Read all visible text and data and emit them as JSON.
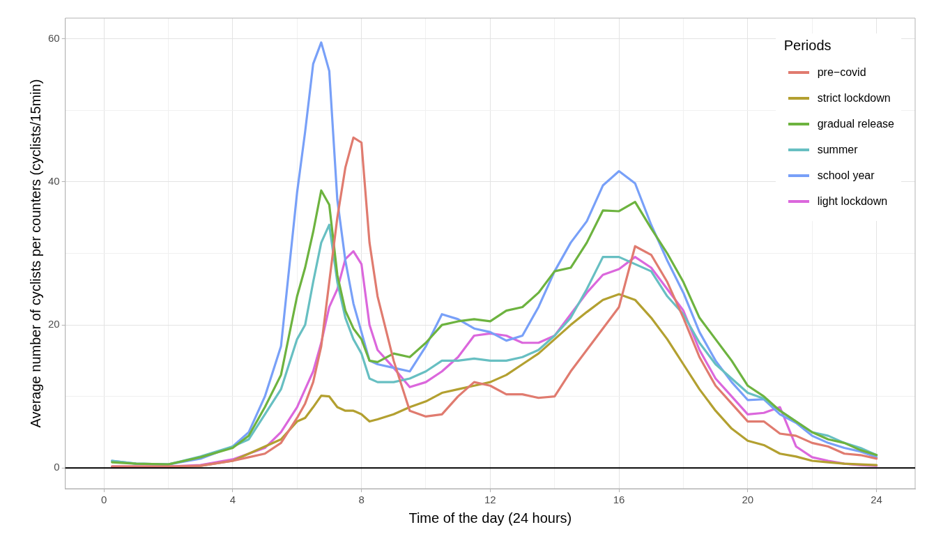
{
  "chart_data": {
    "type": "line",
    "xlabel": "Time of the day (24 hours)",
    "ylabel": "Average number of cyclists per counters (cyclists/15min)",
    "legend_title": "Periods",
    "legend": "top right",
    "grid": true,
    "line_style": "solid",
    "marker": "none",
    "xlim": [
      -1.2,
      25.2
    ],
    "xticks": [
      0,
      {
        "value": 2,
        "label": null
      },
      4,
      {
        "value": 6,
        "label": null
      },
      8,
      {
        "value": 10,
        "label": null
      },
      12,
      {
        "value": 14,
        "label": null
      },
      16,
      {
        "value": 18,
        "label": null
      },
      20,
      {
        "value": 22,
        "label": null
      },
      24
    ],
    "ylim": [
      -2.9,
      62.9
    ],
    "yticks": [
      0,
      {
        "value": 10,
        "label": null
      },
      20,
      {
        "value": 30,
        "label": null
      },
      40,
      {
        "value": 50,
        "label": null
      },
      60
    ],
    "ref_lines": [
      {
        "axis": "y",
        "value": 0,
        "color": "#000000"
      }
    ],
    "x": [
      0.25,
      1,
      2,
      3,
      4,
      4.5,
      5,
      5.5,
      6,
      6.25,
      6.5,
      6.75,
      7,
      7.25,
      7.5,
      7.75,
      8,
      8.25,
      8.5,
      9,
      9.5,
      10,
      10.5,
      11,
      11.5,
      12,
      12.5,
      13,
      13.5,
      14,
      14.5,
      15,
      15.5,
      16,
      16.5,
      17,
      17.5,
      18,
      18.5,
      19,
      19.5,
      20,
      20.5,
      21,
      21.5,
      22,
      22.5,
      23,
      23.5,
      24
    ],
    "series": [
      {
        "name": "pre−covid",
        "color": "#e07b6f",
        "values": [
          0.2,
          0.2,
          0.2,
          0.3,
          1,
          1.5,
          2,
          3.5,
          7,
          9,
          12,
          17,
          26,
          35,
          42,
          46.2,
          45.5,
          31.5,
          24,
          15,
          8,
          7.2,
          7.5,
          10,
          12,
          11.5,
          10.3,
          10.3,
          9.8,
          10,
          13.5,
          16.5,
          19.5,
          22.5,
          31,
          29.8,
          26,
          21,
          15.5,
          11.5,
          9,
          6.5,
          6.5,
          4.8,
          4.5,
          3.5,
          3,
          2,
          1.8,
          1.3
        ]
      },
      {
        "name": "strict lockdown",
        "color": "#b3a030",
        "values": [
          null,
          null,
          0.1,
          0.3,
          1,
          2,
          3,
          4,
          6.5,
          7,
          8.5,
          10.1,
          10,
          8.5,
          8,
          8,
          7.5,
          6.5,
          6.8,
          7.5,
          8.5,
          9.3,
          10.5,
          11,
          11.5,
          12,
          13,
          14.5,
          16,
          18,
          20,
          21.8,
          23.5,
          24.3,
          23.5,
          21,
          18,
          14.5,
          11,
          8,
          5.5,
          3.8,
          3.2,
          2,
          1.6,
          1,
          0.8,
          0.6,
          0.5,
          0.4
        ]
      },
      {
        "name": "gradual release",
        "color": "#6db33f",
        "values": [
          0.8,
          0.6,
          0.5,
          1.5,
          2.8,
          4.5,
          8.5,
          13,
          24,
          28,
          33,
          38.8,
          36.8,
          27,
          22,
          19.5,
          18,
          15,
          14.8,
          16,
          15.5,
          17.5,
          20,
          20.5,
          20.8,
          20.5,
          22,
          22.5,
          24.5,
          27.5,
          28,
          31.5,
          36,
          35.9,
          37.2,
          33.5,
          30,
          26,
          21,
          18,
          15,
          11.5,
          10,
          8,
          6.5,
          5,
          4,
          3.5,
          2.5,
          1.8
        ]
      },
      {
        "name": "summer",
        "color": "#67bfc2",
        "values": [
          1,
          0.6,
          0.5,
          1.6,
          3,
          4,
          7.5,
          11,
          18,
          20,
          26,
          31.5,
          34,
          26,
          21,
          18,
          16,
          12.5,
          12,
          12,
          12.5,
          13.5,
          15,
          15,
          15.3,
          15,
          15,
          15.5,
          16.5,
          18.5,
          21,
          25,
          29.5,
          29.5,
          28.5,
          27.5,
          24,
          21.5,
          17.5,
          14.5,
          12.5,
          10.5,
          9.7,
          8,
          6.5,
          5,
          4.5,
          3.5,
          2.8,
          1.8
        ]
      },
      {
        "name": "school year",
        "color": "#78a0f8",
        "values": [
          1,
          0.6,
          0.5,
          1.3,
          3,
          5,
          10,
          17,
          38.5,
          47,
          56.5,
          59.5,
          55.5,
          37.5,
          29,
          23,
          19,
          15,
          14.5,
          14,
          13.5,
          17,
          21.5,
          20.8,
          19.5,
          19,
          17.8,
          18.5,
          22.5,
          27.5,
          31.5,
          34.5,
          39.5,
          41.5,
          39.8,
          34,
          29,
          24.5,
          19,
          15,
          12,
          9.5,
          9.6,
          7.5,
          6.3,
          4.5,
          3.5,
          2.8,
          2.3,
          1.5
        ]
      },
      {
        "name": "light lockdown",
        "color": "#db67dc",
        "values": [
          0.2,
          0.2,
          0.2,
          0.4,
          1.2,
          2,
          2.8,
          5,
          8.5,
          11,
          13.5,
          17.5,
          22.5,
          25,
          29.2,
          30.3,
          28.5,
          20,
          16.5,
          14,
          11.3,
          12,
          13.5,
          15.5,
          18.5,
          18.8,
          18.5,
          17.5,
          17.5,
          18.5,
          21.5,
          24.5,
          27,
          27.8,
          29.5,
          28,
          25,
          22,
          16.5,
          12.5,
          10,
          7.5,
          7.7,
          8.5,
          3,
          1.5,
          1,
          0.6,
          0.4,
          0.3
        ]
      }
    ]
  }
}
